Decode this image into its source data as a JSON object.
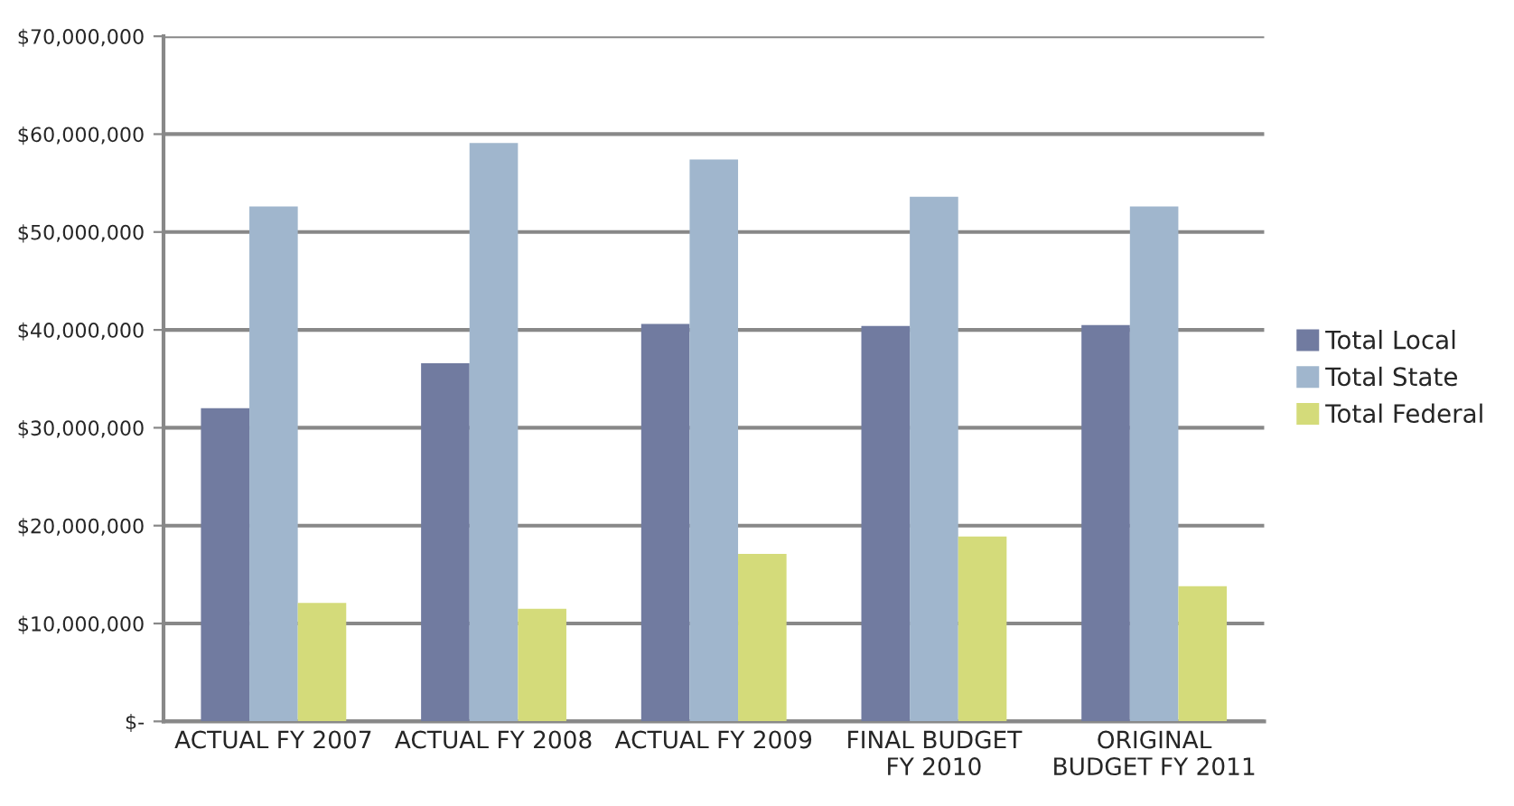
{
  "chart_data": {
    "type": "bar",
    "categories": [
      "ACTUAL FY 2007",
      "ACTUAL FY 2008",
      "ACTUAL FY 2009",
      "FINAL BUDGET\nFY 2010",
      "ORIGINAL\nBUDGET FY 2011"
    ],
    "series": [
      {
        "name": "Total Local",
        "color": "#717ba0",
        "values": [
          32000000,
          36600000,
          40600000,
          40400000,
          40500000
        ]
      },
      {
        "name": "Total State",
        "color": "#a0b6cd",
        "values": [
          52600000,
          59100000,
          57400000,
          53600000,
          52600000
        ]
      },
      {
        "name": "Total Federal",
        "color": "#d4db7a",
        "values": [
          12100000,
          11500000,
          17100000,
          18900000,
          13800000
        ]
      }
    ],
    "ylim": [
      0,
      70000000
    ],
    "yticks": [
      {
        "value": 0,
        "label": "$-"
      },
      {
        "value": 10000000,
        "label": "$10,000,000"
      },
      {
        "value": 20000000,
        "label": "$20,000,000"
      },
      {
        "value": 30000000,
        "label": "$30,000,000"
      },
      {
        "value": 40000000,
        "label": "$40,000,000"
      },
      {
        "value": 50000000,
        "label": "$50,000,000"
      },
      {
        "value": 60000000,
        "label": "$60,000,000"
      },
      {
        "value": 70000000,
        "label": "$70,000,000"
      }
    ],
    "grid": "y",
    "legend": "right"
  }
}
